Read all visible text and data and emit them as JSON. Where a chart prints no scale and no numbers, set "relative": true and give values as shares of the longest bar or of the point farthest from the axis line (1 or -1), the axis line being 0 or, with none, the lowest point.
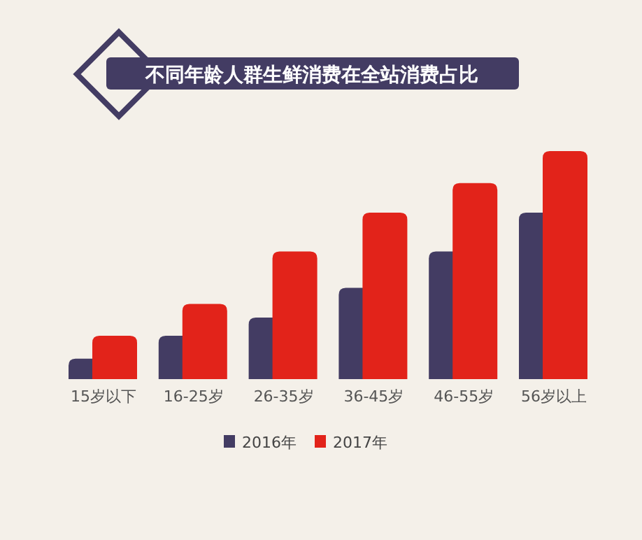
{
  "chart_data": {
    "type": "bar",
    "title": "不同年龄人群生鲜消费在全站消费占比",
    "relative": true,
    "legend": "bottom",
    "categories": [
      "15岁以下",
      "16-25岁",
      "26-35岁",
      "36-45岁",
      "46-55岁",
      "56岁以上"
    ],
    "series": [
      {
        "name": "2016年",
        "color": "#433c63",
        "values": [
          0.09,
          0.19,
          0.27,
          0.4,
          0.56,
          0.73
        ]
      },
      {
        "name": "2017年",
        "color": "#e2231a",
        "values": [
          0.19,
          0.33,
          0.56,
          0.73,
          0.86,
          1
        ]
      }
    ]
  }
}
